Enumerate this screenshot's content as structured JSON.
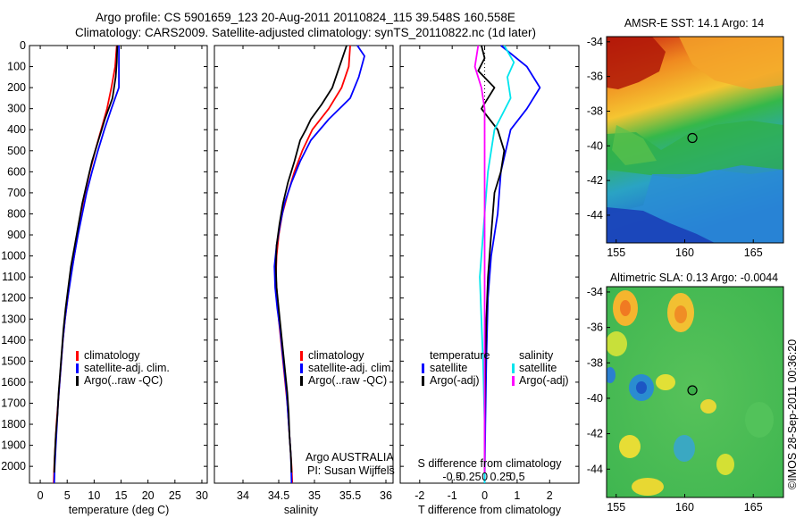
{
  "header": {
    "line1": "Argo profile: CS 5901659_123 20-Aug-2011 20110824_115 39.548S 160.558E",
    "line2": "Climatology: CARS2009. Satellite-adjusted climatology: synTS_20110822.nc (1d later)"
  },
  "footer": {
    "stamp": "©IMOS 28-Sep-2011 00:36:20"
  },
  "colors": {
    "climatology": "#ff0000",
    "satellite": "#0000ff",
    "argo": "#000000",
    "sat_salinity": "#00e5ee",
    "argo_salinity_adj": "#ff00ff"
  },
  "chart_data": [
    {
      "type": "line",
      "panel": "temperature",
      "xlabel": "temperature (deg C)",
      "ylabel": "",
      "xlim": [
        -2,
        31
      ],
      "ylim": [
        2080,
        0
      ],
      "y_inverted": true,
      "xticks": [
        "0",
        "5",
        "10",
        "15",
        "20",
        "25",
        "30"
      ],
      "yticks": [
        "0",
        "100",
        "200",
        "300",
        "400",
        "500",
        "600",
        "700",
        "800",
        "900",
        "1000",
        "1100",
        "1200",
        "1300",
        "1400",
        "1500",
        "1600",
        "1700",
        "1800",
        "1900",
        "2000"
      ],
      "legend": [
        "climatology",
        "satellite-adj. clim.",
        "Argo(..raw -QC)"
      ],
      "series": [
        {
          "name": "climatology",
          "color": "#ff0000",
          "points": [
            [
              14.2,
              0
            ],
            [
              13.9,
              100
            ],
            [
              13.2,
              200
            ],
            [
              12.4,
              300
            ],
            [
              11.3,
              400
            ],
            [
              10.2,
              500
            ],
            [
              9.2,
              600
            ],
            [
              8.3,
              700
            ],
            [
              7.5,
              800
            ],
            [
              6.9,
              900
            ],
            [
              6.3,
              1000
            ],
            [
              5.6,
              1100
            ],
            [
              5.1,
              1200
            ],
            [
              4.6,
              1300
            ],
            [
              4.2,
              1400
            ],
            [
              3.9,
              1500
            ],
            [
              3.6,
              1600
            ],
            [
              3.3,
              1700
            ],
            [
              3.0,
              1800
            ],
            [
              2.8,
              1900
            ],
            [
              2.6,
              2000
            ],
            [
              2.5,
              2080
            ]
          ]
        },
        {
          "name": "satellite-adj. clim.",
          "color": "#0000ff",
          "points": [
            [
              14.6,
              0
            ],
            [
              14.6,
              100
            ],
            [
              14.6,
              200
            ],
            [
              13.2,
              300
            ],
            [
              11.9,
              400
            ],
            [
              10.7,
              500
            ],
            [
              9.6,
              600
            ],
            [
              8.6,
              700
            ],
            [
              7.8,
              800
            ],
            [
              7.0,
              900
            ],
            [
              6.3,
              1000
            ],
            [
              5.7,
              1100
            ],
            [
              5.1,
              1200
            ],
            [
              4.6,
              1300
            ],
            [
              4.2,
              1400
            ],
            [
              3.9,
              1500
            ],
            [
              3.6,
              1600
            ],
            [
              3.3,
              1700
            ],
            [
              3.1,
              1800
            ],
            [
              2.9,
              1900
            ],
            [
              2.7,
              2000
            ],
            [
              2.6,
              2080
            ]
          ]
        },
        {
          "name": "Argo(..raw -QC)",
          "color": "#000000",
          "points": [
            [
              14.3,
              0
            ],
            [
              14.2,
              80
            ],
            [
              14.0,
              150
            ],
            [
              13.4,
              250
            ],
            [
              12.0,
              350
            ],
            [
              10.8,
              450
            ],
            [
              9.6,
              550
            ],
            [
              8.7,
              650
            ],
            [
              7.8,
              750
            ],
            [
              7.1,
              850
            ],
            [
              6.4,
              950
            ],
            [
              5.7,
              1050
            ],
            [
              5.2,
              1150
            ],
            [
              4.7,
              1250
            ],
            [
              4.3,
              1350
            ],
            [
              4.0,
              1450
            ],
            [
              3.7,
              1550
            ],
            [
              3.4,
              1650
            ],
            [
              3.2,
              1750
            ],
            [
              2.9,
              1850
            ],
            [
              2.7,
              1950
            ],
            [
              2.6,
              2030
            ]
          ]
        }
      ]
    },
    {
      "type": "line",
      "panel": "salinity",
      "xlabel": "salinity",
      "xlim": [
        33.6,
        36.1
      ],
      "ylim": [
        2080,
        0
      ],
      "y_inverted": true,
      "xticks": [
        "34",
        "34.5",
        "35",
        "35.5",
        "36"
      ],
      "legend": [
        "climatology",
        "satellite-adj. clim.",
        "Argo(..raw -QC)"
      ],
      "annotation": [
        "Argo AUSTRALIA",
        "PI: Susan Wijffels"
      ],
      "series": [
        {
          "name": "climatology",
          "color": "#ff0000",
          "points": [
            [
              35.5,
              0
            ],
            [
              35.48,
              100
            ],
            [
              35.38,
              200
            ],
            [
              35.2,
              300
            ],
            [
              34.97,
              400
            ],
            [
              34.83,
              500
            ],
            [
              34.72,
              600
            ],
            [
              34.63,
              700
            ],
            [
              34.55,
              800
            ],
            [
              34.5,
              900
            ],
            [
              34.47,
              1000
            ],
            [
              34.46,
              1100
            ],
            [
              34.48,
              1200
            ],
            [
              34.5,
              1300
            ],
            [
              34.53,
              1400
            ],
            [
              34.56,
              1500
            ],
            [
              34.59,
              1600
            ],
            [
              34.62,
              1700
            ],
            [
              34.64,
              1800
            ],
            [
              34.66,
              1900
            ],
            [
              34.68,
              2000
            ],
            [
              34.69,
              2080
            ]
          ]
        },
        {
          "name": "satellite-adj. clim.",
          "color": "#0000ff",
          "points": [
            [
              35.6,
              0
            ],
            [
              35.7,
              50
            ],
            [
              35.62,
              150
            ],
            [
              35.5,
              250
            ],
            [
              35.2,
              350
            ],
            [
              34.95,
              450
            ],
            [
              34.8,
              550
            ],
            [
              34.68,
              650
            ],
            [
              34.58,
              750
            ],
            [
              34.52,
              850
            ],
            [
              34.47,
              950
            ],
            [
              34.44,
              1050
            ],
            [
              34.45,
              1150
            ],
            [
              34.48,
              1250
            ],
            [
              34.52,
              1350
            ],
            [
              34.55,
              1450
            ],
            [
              34.58,
              1550
            ],
            [
              34.61,
              1650
            ],
            [
              34.63,
              1750
            ],
            [
              34.65,
              1850
            ],
            [
              34.67,
              1950
            ],
            [
              34.68,
              2080
            ]
          ]
        },
        {
          "name": "Argo(..raw -QC)",
          "color": "#000000",
          "points": [
            [
              35.45,
              0
            ],
            [
              35.4,
              50
            ],
            [
              35.35,
              100
            ],
            [
              35.25,
              200
            ],
            [
              35.1,
              280
            ],
            [
              34.95,
              350
            ],
            [
              34.88,
              400
            ],
            [
              34.8,
              450
            ],
            [
              34.72,
              550
            ],
            [
              34.63,
              650
            ],
            [
              34.56,
              750
            ],
            [
              34.51,
              850
            ],
            [
              34.47,
              950
            ],
            [
              34.46,
              1050
            ],
            [
              34.47,
              1150
            ],
            [
              34.5,
              1250
            ],
            [
              34.53,
              1350
            ],
            [
              34.56,
              1450
            ],
            [
              34.59,
              1550
            ],
            [
              34.62,
              1650
            ],
            [
              34.64,
              1750
            ],
            [
              34.65,
              1850
            ],
            [
              34.67,
              1950
            ],
            [
              34.68,
              2030
            ]
          ]
        }
      ]
    },
    {
      "type": "line",
      "panel": "differences",
      "xlabel": "T difference from climatology",
      "top_label": "S difference from climatology",
      "xlim": [
        -2.6,
        2.9
      ],
      "ylim": [
        2080,
        0
      ],
      "y_inverted": true,
      "xticks": [
        "-2",
        "-1",
        "0",
        "1",
        "2"
      ],
      "top_ticks": [
        "-0.5",
        "-0.25",
        "0",
        "0.25",
        "0.5"
      ],
      "legend_headers": [
        "temperature",
        "salinity"
      ],
      "legend": [
        "satellite",
        "Argo(-adj)",
        "satellite",
        "Argo(-adj)"
      ],
      "series": [
        {
          "name": "satellite",
          "group": "temperature",
          "color": "#0000ff",
          "points": [
            [
              0.5,
              0
            ],
            [
              1.3,
              100
            ],
            [
              1.7,
              200
            ],
            [
              1.3,
              300
            ],
            [
              0.8,
              400
            ],
            [
              0.5,
              600
            ],
            [
              0.4,
              800
            ],
            [
              0.2,
              1000
            ],
            [
              0.1,
              1200
            ],
            [
              0.05,
              1500
            ],
            [
              0.02,
              1800
            ],
            [
              0.0,
              2080
            ]
          ]
        },
        {
          "name": "Argo(-adj)",
          "group": "temperature",
          "color": "#000000",
          "points": [
            [
              -0.1,
              0
            ],
            [
              0.0,
              60
            ],
            [
              -0.2,
              120
            ],
            [
              0.3,
              200
            ],
            [
              -0.1,
              300
            ],
            [
              0.4,
              400
            ],
            [
              0.6,
              500
            ],
            [
              0.5,
              600
            ],
            [
              0.3,
              700
            ],
            [
              0.2,
              900
            ],
            [
              0.1,
              1100
            ],
            [
              0.05,
              1300
            ],
            [
              0.02,
              1500
            ],
            [
              0.0,
              1800
            ],
            [
              0.0,
              2030
            ]
          ]
        },
        {
          "name": "satellite",
          "group": "salinity",
          "color": "#00e5ee",
          "points": [
            [
              0.6,
              0
            ],
            [
              0.9,
              80
            ],
            [
              0.7,
              150
            ],
            [
              0.8,
              250
            ],
            [
              0.3,
              400
            ],
            [
              0.1,
              600
            ],
            [
              0.0,
              800
            ],
            [
              -0.1,
              1000
            ],
            [
              -0.15,
              1100
            ],
            [
              -0.1,
              1300
            ],
            [
              -0.05,
              1500
            ],
            [
              0.0,
              1800
            ],
            [
              0.0,
              2080
            ]
          ]
        },
        {
          "name": "Argo(-adj)",
          "group": "salinity",
          "color": "#ff00ff",
          "points": [
            [
              -0.2,
              0
            ],
            [
              -0.3,
              100
            ],
            [
              -0.1,
              200
            ],
            [
              0.0,
              300
            ],
            [
              0.0,
              600
            ],
            [
              0.0,
              1000
            ],
            [
              0.0,
              1500
            ],
            [
              0.0,
              2030
            ]
          ]
        }
      ]
    },
    {
      "type": "heatmap",
      "panel": "sst-map",
      "title": "AMSR-E SST: 14.1 Argo: 14",
      "xlim": [
        154.3,
        167.2
      ],
      "ylim": [
        -45.6,
        -33.7
      ],
      "xticks": [
        "155",
        "160",
        "165"
      ],
      "yticks": [
        "-34",
        "-36",
        "-38",
        "-40",
        "-42",
        "-44"
      ],
      "marker": {
        "lon": 160.558,
        "lat": -39.548
      }
    },
    {
      "type": "heatmap",
      "panel": "sla-map",
      "title": "Altimetric SLA: 0.13 Argo: -0.0044",
      "xlim": [
        154.3,
        167.2
      ],
      "ylim": [
        -45.6,
        -33.7
      ],
      "xticks": [
        "155",
        "160",
        "165"
      ],
      "yticks": [
        "-34",
        "-36",
        "-38",
        "-40",
        "-42",
        "-44"
      ],
      "marker": {
        "lon": 160.558,
        "lat": -39.548
      }
    }
  ]
}
